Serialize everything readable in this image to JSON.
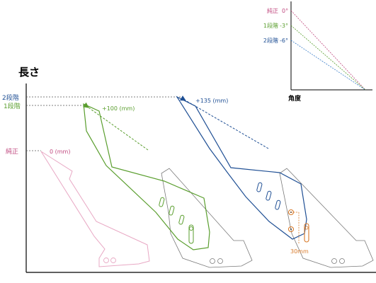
{
  "colors": {
    "stock": "#c0497f",
    "stage1": "#5a9e2e",
    "stage2": "#1f4f94",
    "gray": "#555555",
    "offset": "#d87a2a",
    "axis": "#000000"
  },
  "main_chart": {
    "y_title": "長さ",
    "levels": {
      "stage2": "2段階",
      "stage1": "1段階",
      "stock": "純正"
    },
    "lengths": {
      "stock": "0 (mm)",
      "stage1": "+100 (mm)",
      "stage2": "+135 (mm)"
    },
    "offset_label": "30mm"
  },
  "angle_chart": {
    "x_title": "角度",
    "rows": [
      {
        "name": "純正",
        "angle": "0°"
      },
      {
        "name": "1段階",
        "angle": "-3°"
      },
      {
        "name": "2段階",
        "angle": "-6°"
      }
    ]
  }
}
